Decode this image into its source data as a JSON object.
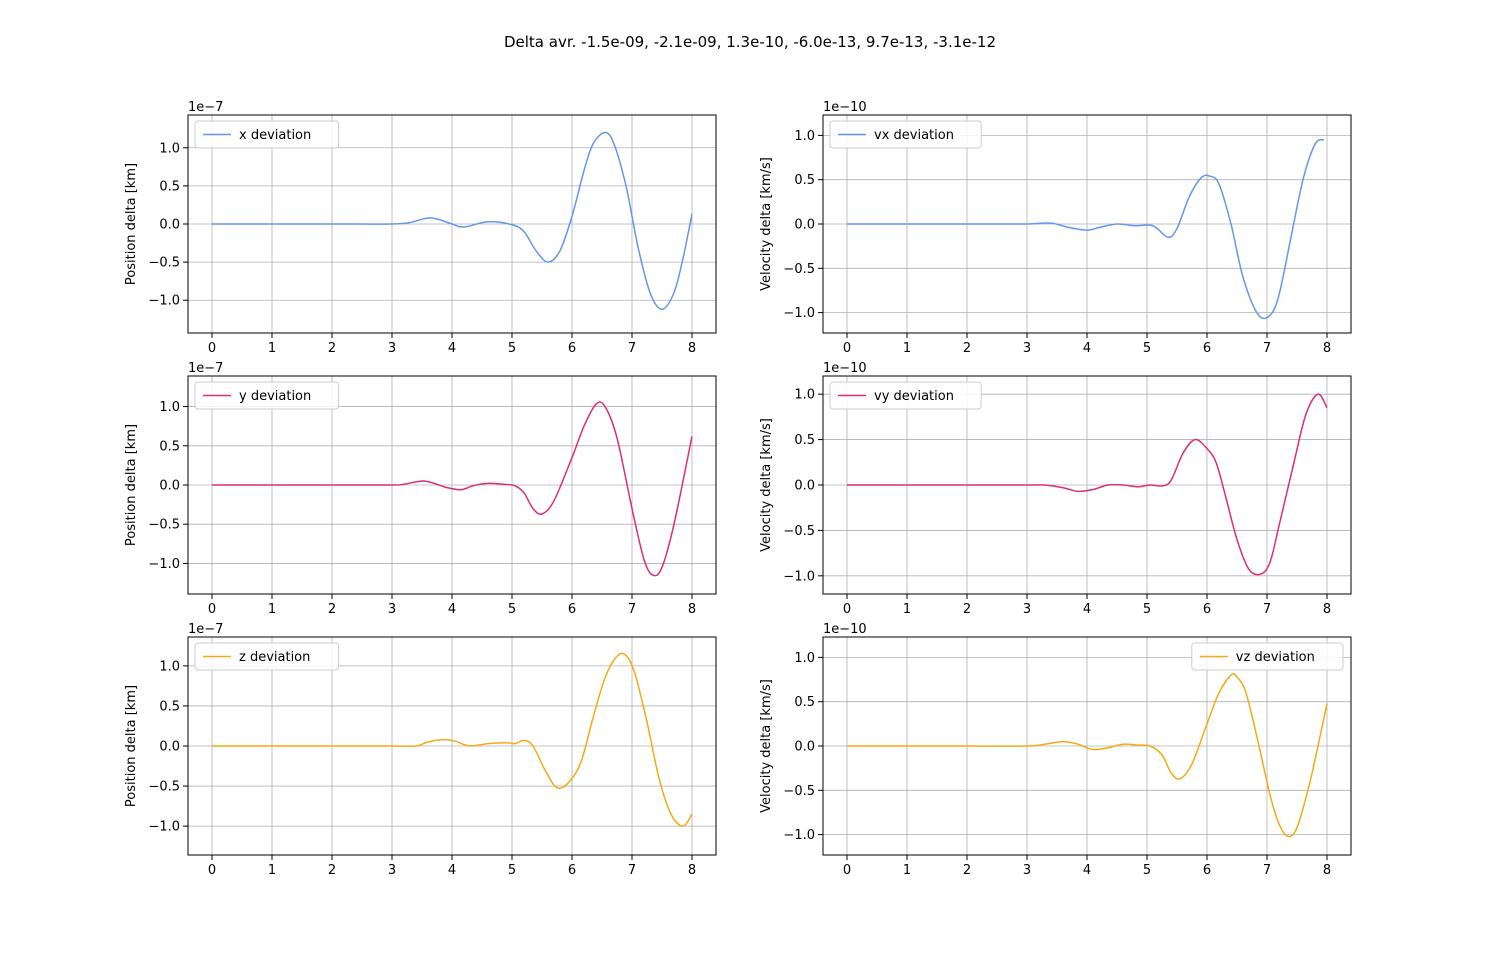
{
  "suptitle": "Delta avr. -1.5e-09, -2.1e-09, 1.3e-10, -6.0e-13, 9.7e-13, -3.1e-12",
  "chart_data": [
    {
      "type": "line",
      "offset_text": "1e−7",
      "ylabel": "Position delta [km]",
      "xlim": [
        -0.4,
        8.4
      ],
      "ylim": [
        -1.43,
        1.43
      ],
      "xticks": [
        "0",
        "1",
        "2",
        "3",
        "4",
        "5",
        "6",
        "7",
        "8"
      ],
      "yticks": [
        "−1.0",
        "−0.5",
        "0.0",
        "0.5",
        "1.0"
      ],
      "yticks_values": [
        -1.0,
        -0.5,
        0.0,
        0.5,
        1.0
      ],
      "grid": true,
      "legend_position": "upper left",
      "series": [
        {
          "name": "x deviation",
          "color": "#6495ed",
          "x": [
            0,
            1,
            2,
            3,
            3.3,
            3.65,
            4,
            4.2,
            4.6,
            5,
            5.2,
            5.4,
            5.6,
            5.8,
            6,
            6.2,
            6.35,
            6.55,
            6.7,
            6.9,
            7.1,
            7.3,
            7.5,
            7.7,
            7.85,
            8
          ],
          "y": [
            0,
            0,
            0,
            0,
            0.02,
            0.08,
            0,
            -0.04,
            0.03,
            -0.01,
            -0.1,
            -0.35,
            -0.5,
            -0.35,
            0.1,
            0.7,
            1.05,
            1.2,
            1.05,
            0.5,
            -0.3,
            -0.9,
            -1.12,
            -0.9,
            -0.45,
            0.13
          ]
        }
      ]
    },
    {
      "type": "line",
      "offset_text": "1e−10",
      "ylabel": "Velocity delta [km/s]",
      "xlim": [
        -0.4,
        8.4
      ],
      "ylim": [
        -1.23,
        1.23
      ],
      "xticks": [
        "0",
        "1",
        "2",
        "3",
        "4",
        "5",
        "6",
        "7",
        "8"
      ],
      "yticks": [
        "−1.0",
        "−0.5",
        "0.0",
        "0.5",
        "1.0"
      ],
      "yticks_values": [
        -1.0,
        -0.5,
        0.0,
        0.5,
        1.0
      ],
      "grid": true,
      "legend_position": "upper left",
      "series": [
        {
          "name": "vx deviation",
          "color": "#6495ed",
          "x": [
            0,
            1,
            2,
            3,
            3.4,
            3.7,
            4,
            4.2,
            4.5,
            4.8,
            5.1,
            5.35,
            5.5,
            5.7,
            5.9,
            6.05,
            6.2,
            6.4,
            6.6,
            6.85,
            7.05,
            7.2,
            7.4,
            7.6,
            7.8,
            7.95
          ],
          "y": [
            0,
            0,
            0,
            0,
            0.01,
            -0.04,
            -0.07,
            -0.04,
            0,
            -0.02,
            -0.02,
            -0.15,
            -0.05,
            0.3,
            0.52,
            0.54,
            0.45,
            0,
            -0.6,
            -1.02,
            -1.03,
            -0.8,
            -0.15,
            0.5,
            0.9,
            0.95
          ]
        }
      ]
    },
    {
      "type": "line",
      "offset_text": "1e−7",
      "ylabel": "Position delta [km]",
      "xlim": [
        -0.4,
        8.4
      ],
      "ylim": [
        -1.39,
        1.39
      ],
      "xticks": [
        "0",
        "1",
        "2",
        "3",
        "4",
        "5",
        "6",
        "7",
        "8"
      ],
      "yticks": [
        "−1.0",
        "−0.5",
        "0.0",
        "0.5",
        "1.0"
      ],
      "yticks_values": [
        -1.0,
        -0.5,
        0.0,
        0.5,
        1.0
      ],
      "grid": true,
      "legend_position": "upper left",
      "series": [
        {
          "name": "y deviation",
          "color": "#dc2d78",
          "x": [
            0,
            1,
            2,
            3,
            3.2,
            3.55,
            3.9,
            4.15,
            4.35,
            4.6,
            4.85,
            5.05,
            5.2,
            5.35,
            5.5,
            5.7,
            6,
            6.2,
            6.4,
            6.55,
            6.75,
            7,
            7.2,
            7.35,
            7.5,
            7.7,
            8
          ],
          "y": [
            0,
            0,
            0,
            0,
            0.01,
            0.05,
            -0.03,
            -0.06,
            -0.01,
            0.02,
            0.01,
            -0.01,
            -0.1,
            -0.3,
            -0.37,
            -0.2,
            0.35,
            0.75,
            1.03,
            1.0,
            0.6,
            -0.3,
            -0.95,
            -1.15,
            -1.05,
            -0.5,
            0.62
          ]
        }
      ]
    },
    {
      "type": "line",
      "offset_text": "1e−10",
      "ylabel": "Velocity delta [km/s]",
      "xlim": [
        -0.4,
        8.4
      ],
      "ylim": [
        -1.2,
        1.2
      ],
      "xticks": [
        "0",
        "1",
        "2",
        "3",
        "4",
        "5",
        "6",
        "7",
        "8"
      ],
      "yticks": [
        "−1.0",
        "−0.5",
        "0.0",
        "0.5",
        "1.0"
      ],
      "yticks_values": [
        -1.0,
        -0.5,
        0.0,
        0.5,
        1.0
      ],
      "grid": true,
      "legend_position": "upper left",
      "series": [
        {
          "name": "vy deviation",
          "color": "#dc2d78",
          "x": [
            0,
            1,
            2,
            3,
            3.3,
            3.6,
            3.85,
            4.1,
            4.35,
            4.6,
            4.85,
            5.05,
            5.25,
            5.4,
            5.6,
            5.8,
            6,
            6.15,
            6.3,
            6.5,
            6.7,
            6.9,
            7.05,
            7.2,
            7.45,
            7.65,
            7.85,
            8
          ],
          "y": [
            0,
            0,
            0,
            0,
            0,
            -0.03,
            -0.07,
            -0.05,
            0,
            0,
            -0.02,
            0,
            -0.01,
            0.05,
            0.35,
            0.5,
            0.4,
            0.25,
            -0.1,
            -0.6,
            -0.93,
            -0.98,
            -0.85,
            -0.45,
            0.25,
            0.78,
            1.0,
            0.85
          ]
        }
      ]
    },
    {
      "type": "line",
      "offset_text": "1e−7",
      "ylabel": "Position delta [km]",
      "xlim": [
        -0.4,
        8.4
      ],
      "ylim": [
        -1.36,
        1.36
      ],
      "xticks": [
        "0",
        "1",
        "2",
        "3",
        "4",
        "5",
        "6",
        "7",
        "8"
      ],
      "yticks": [
        "−1.0",
        "−0.5",
        "0.0",
        "0.5",
        "1.0"
      ],
      "yticks_values": [
        -1.0,
        -0.5,
        0.0,
        0.5,
        1.0
      ],
      "grid": true,
      "legend_position": "upper left",
      "series": [
        {
          "name": "z deviation",
          "color": "#f5aa14",
          "x": [
            0,
            1,
            2,
            3,
            3.4,
            3.6,
            3.85,
            4.05,
            4.3,
            4.6,
            4.9,
            5.05,
            5.2,
            5.35,
            5.55,
            5.75,
            5.95,
            6.15,
            6.35,
            6.55,
            6.75,
            6.9,
            7.05,
            7.25,
            7.45,
            7.65,
            7.85,
            8
          ],
          "y": [
            0,
            0,
            0,
            0,
            0,
            0.05,
            0.08,
            0.06,
            0,
            0.03,
            0.04,
            0.03,
            0.07,
            0,
            -0.3,
            -0.52,
            -0.45,
            -0.2,
            0.35,
            0.85,
            1.12,
            1.13,
            0.9,
            0.3,
            -0.4,
            -0.85,
            -1.0,
            -0.85
          ]
        }
      ]
    },
    {
      "type": "line",
      "offset_text": "1e−10",
      "ylabel": "Velocity delta [km/s]",
      "xlim": [
        -0.4,
        8.4
      ],
      "ylim": [
        -1.23,
        1.23
      ],
      "xticks": [
        "0",
        "1",
        "2",
        "3",
        "4",
        "5",
        "6",
        "7",
        "8"
      ],
      "yticks": [
        "−1.0",
        "−0.5",
        "0.0",
        "0.5",
        "1.0"
      ],
      "yticks_values": [
        -1.0,
        -0.5,
        0.0,
        0.5,
        1.0
      ],
      "grid": true,
      "legend_position": "upper right",
      "series": [
        {
          "name": "vz deviation",
          "color": "#f5aa14",
          "x": [
            0,
            1,
            2,
            3,
            3.3,
            3.6,
            3.85,
            4.1,
            4.35,
            4.6,
            4.85,
            5.05,
            5.25,
            5.4,
            5.55,
            5.75,
            6,
            6.2,
            6.4,
            6.5,
            6.65,
            6.85,
            7.05,
            7.2,
            7.35,
            7.5,
            7.7,
            7.85,
            8
          ],
          "y": [
            0,
            0,
            0,
            0,
            0.02,
            0.05,
            0.02,
            -0.04,
            -0.02,
            0.02,
            0.01,
            0,
            -0.1,
            -0.3,
            -0.37,
            -0.2,
            0.25,
            0.6,
            0.8,
            0.78,
            0.6,
            0.05,
            -0.55,
            -0.88,
            -1.02,
            -0.92,
            -0.45,
            0,
            0.48
          ]
        }
      ]
    }
  ]
}
